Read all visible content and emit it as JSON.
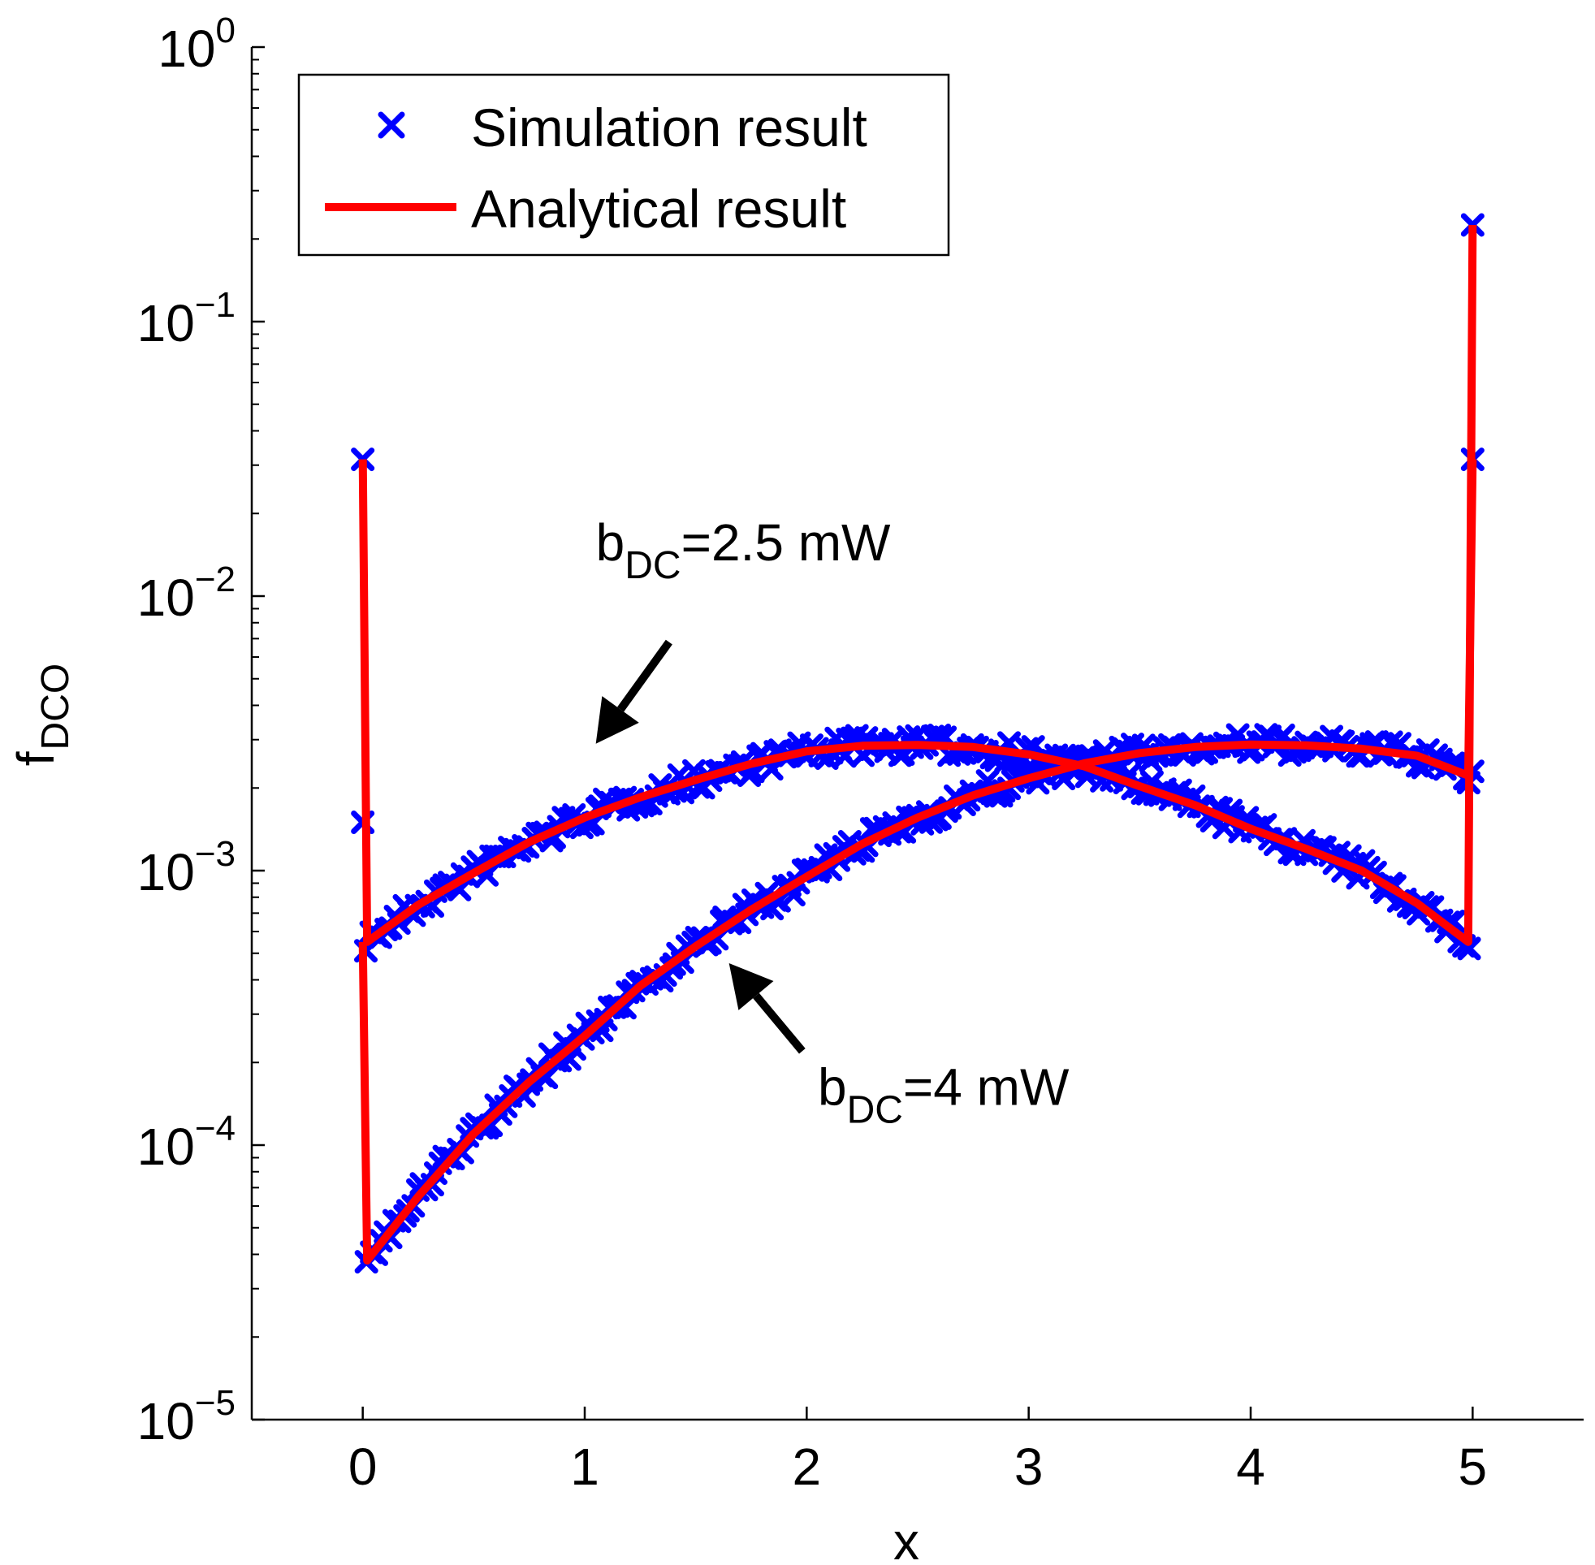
{
  "chart_data": {
    "type": "line",
    "title": "",
    "xlabel": "x",
    "ylabel": {
      "base": "f",
      "sub": "DCO"
    },
    "yscale": "log",
    "xlim": [
      -0.5,
      5.5
    ],
    "ylim": [
      1e-05,
      1
    ],
    "xticks": [
      {
        "v": 0,
        "label": "0"
      },
      {
        "v": 1,
        "label": "1"
      },
      {
        "v": 2,
        "label": "2"
      },
      {
        "v": 3,
        "label": "3"
      },
      {
        "v": 4,
        "label": "4"
      },
      {
        "v": 5,
        "label": "5"
      }
    ],
    "yticks": [
      {
        "v": 1,
        "base": "10",
        "exp": "0"
      },
      {
        "v": 0.1,
        "base": "10",
        "exp": "−1"
      },
      {
        "v": 0.01,
        "base": "10",
        "exp": "−2"
      },
      {
        "v": 0.001,
        "base": "10",
        "exp": "−3"
      },
      {
        "v": 0.0001,
        "base": "10",
        "exp": "−4"
      },
      {
        "v": 1e-05,
        "base": "10",
        "exp": "−5"
      }
    ],
    "legend": {
      "position": "top-left",
      "entries": [
        {
          "label": "Simulation result",
          "marker": "x",
          "color": "#0000ff"
        },
        {
          "label": "Analytical result",
          "marker": "line",
          "color": "#ff0000"
        }
      ]
    },
    "colors": {
      "simulation": "#0000ff",
      "analytical": "#ff0000"
    },
    "series": [
      {
        "name": "b_DC=2.5 mW",
        "x": [
          0,
          0.02,
          0.25,
          0.5,
          0.75,
          1.0,
          1.25,
          1.5,
          1.75,
          2.0,
          2.25,
          2.5,
          2.75,
          3.0,
          3.25,
          3.5,
          3.75,
          4.0,
          4.25,
          4.5,
          4.75,
          4.98,
          5.0
        ],
        "y": [
          0.0315,
          0.00055,
          0.00075,
          0.00098,
          0.00127,
          0.00156,
          0.00185,
          0.00214,
          0.00245,
          0.00272,
          0.00285,
          0.00287,
          0.00282,
          0.00265,
          0.0024,
          0.00203,
          0.00173,
          0.00142,
          0.0012,
          0.001,
          0.00076,
          0.00055,
          0.225
        ],
        "sim_points": [
          [
            0,
            0.0315
          ],
          [
            0,
            0.0015
          ],
          [
            5,
            0.225
          ],
          [
            5,
            0.0315
          ]
        ]
      },
      {
        "name": "b_DC=4 mW",
        "x": [
          0,
          0.02,
          0.25,
          0.5,
          0.75,
          1.0,
          1.25,
          1.5,
          1.75,
          2.0,
          2.25,
          2.5,
          2.75,
          3.0,
          3.25,
          3.5,
          3.75,
          4.0,
          4.25,
          4.5,
          4.75,
          4.98,
          5.0
        ],
        "y": [
          0.00055,
          3.8e-05,
          6.5e-05,
          0.00011,
          0.00017,
          0.00025,
          0.00038,
          0.00053,
          0.00072,
          0.00095,
          0.00125,
          0.00156,
          0.00188,
          0.00217,
          0.00246,
          0.00268,
          0.00282,
          0.00288,
          0.00286,
          0.00278,
          0.00262,
          0.00222,
          0.0315
        ],
        "sim_points": [
          [
            5,
            0.0023
          ]
        ]
      }
    ],
    "annotations": [
      {
        "id": "ann-2p5",
        "base": "b",
        "sub": "DC",
        "rest": "=2.5 mW",
        "x": 1.05,
        "y": 0.0135,
        "arrow_from": [
          1.38,
          0.0068
        ],
        "arrow_to": [
          1.05,
          0.0029
        ]
      },
      {
        "id": "ann-4",
        "base": "b",
        "sub": "DC",
        "rest": "=4 mW",
        "x": 2.05,
        "y": 0.00014,
        "arrow_from": [
          1.98,
          0.00022
        ],
        "arrow_to": [
          1.65,
          0.00046
        ]
      }
    ]
  }
}
